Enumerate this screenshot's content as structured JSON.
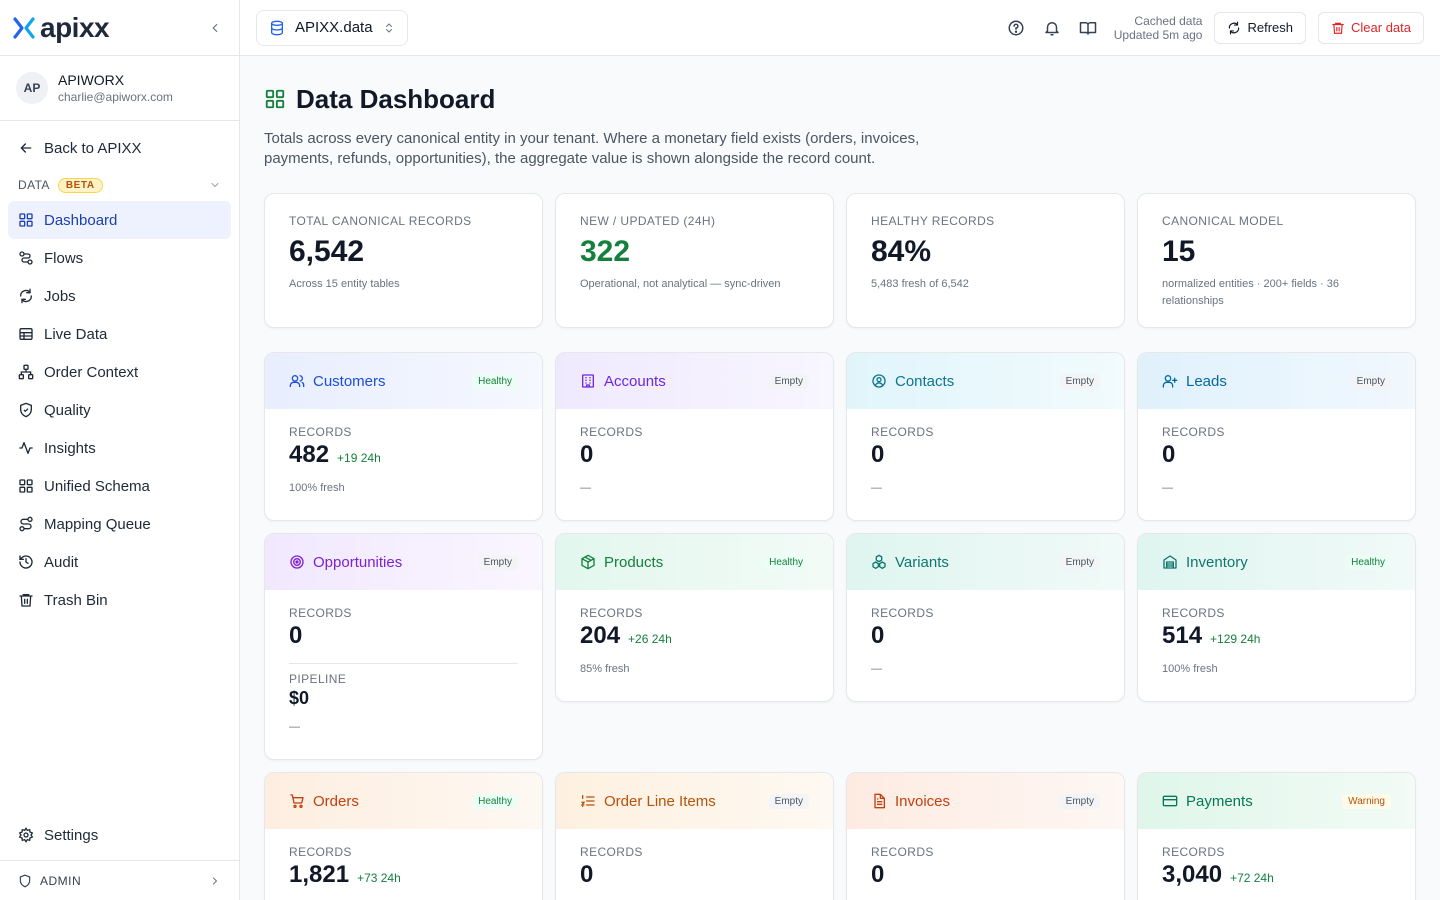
{
  "brand": {
    "name": "apixx"
  },
  "user": {
    "initials": "AP",
    "name": "APIWORX",
    "email": "charlie@apiworx.com"
  },
  "sidebar": {
    "back_label": "Back to APIXX",
    "section_label": "DATA",
    "section_badge": "BETA",
    "items": [
      {
        "label": "Dashboard",
        "icon": "dashboard-icon"
      },
      {
        "label": "Flows",
        "icon": "flows-icon"
      },
      {
        "label": "Jobs",
        "icon": "jobs-icon"
      },
      {
        "label": "Live Data",
        "icon": "table-icon"
      },
      {
        "label": "Order Context",
        "icon": "network-icon"
      },
      {
        "label": "Quality",
        "icon": "shield-check-icon"
      },
      {
        "label": "Insights",
        "icon": "activity-icon"
      },
      {
        "label": "Unified Schema",
        "icon": "grid-icon"
      },
      {
        "label": "Mapping Queue",
        "icon": "route-icon"
      },
      {
        "label": "Audit",
        "icon": "history-icon"
      },
      {
        "label": "Trash Bin",
        "icon": "trash-icon"
      }
    ],
    "settings_label": "Settings",
    "admin_label": "ADMIN"
  },
  "topbar": {
    "workspace": "APIXX.data",
    "cache_line1": "Cached data",
    "cache_line2": "Updated 5m ago",
    "refresh_label": "Refresh",
    "clear_label": "Clear data"
  },
  "page": {
    "title": "Data Dashboard",
    "subtitle": "Totals across every canonical entity in your tenant. Where a monetary field exists (orders, invoices, payments, refunds, opportunities), the aggregate value is shown alongside the record count."
  },
  "stats": [
    {
      "label": "TOTAL CANONICAL RECORDS",
      "value": "6,542",
      "note": "Across 15 entity tables"
    },
    {
      "label": "NEW / UPDATED (24H)",
      "value": "322",
      "note": "Operational, not analytical — sync-driven"
    },
    {
      "label": "HEALTHY RECORDS",
      "value": "84%",
      "note": "5,483 fresh of 6,542"
    },
    {
      "label": "CANONICAL MODEL",
      "value": "15",
      "note": "normalized entities · 200+ fields · 36 relationships"
    }
  ],
  "records_label": "RECORDS",
  "pipeline_label": "PIPELINE",
  "entities": {
    "customers": {
      "title": "Customers",
      "status": "Healthy",
      "records": "482",
      "delta": "+19 24h",
      "note": "100% fresh"
    },
    "accounts": {
      "title": "Accounts",
      "status": "Empty",
      "records": "0",
      "delta": "",
      "note": "—"
    },
    "contacts": {
      "title": "Contacts",
      "status": "Empty",
      "records": "0",
      "delta": "",
      "note": "—"
    },
    "leads": {
      "title": "Leads",
      "status": "Empty",
      "records": "0",
      "delta": "",
      "note": "—"
    },
    "opportunities": {
      "title": "Opportunities",
      "status": "Empty",
      "records": "0",
      "pipeline": "$0",
      "note": "—"
    },
    "products": {
      "title": "Products",
      "status": "Healthy",
      "records": "204",
      "delta": "+26 24h",
      "note": "85% fresh"
    },
    "variants": {
      "title": "Variants",
      "status": "Empty",
      "records": "0",
      "delta": "",
      "note": "—"
    },
    "inventory": {
      "title": "Inventory",
      "status": "Healthy",
      "records": "514",
      "delta": "+129 24h",
      "note": "100% fresh"
    },
    "orders": {
      "title": "Orders",
      "status": "Healthy",
      "records": "1,821",
      "delta": "+73 24h"
    },
    "order_line_items": {
      "title": "Order Line Items",
      "status": "Empty",
      "records": "0",
      "delta": ""
    },
    "invoices": {
      "title": "Invoices",
      "status": "Empty",
      "records": "0",
      "delta": ""
    },
    "payments": {
      "title": "Payments",
      "status": "Warning",
      "records": "3,040",
      "delta": "+72 24h"
    }
  }
}
